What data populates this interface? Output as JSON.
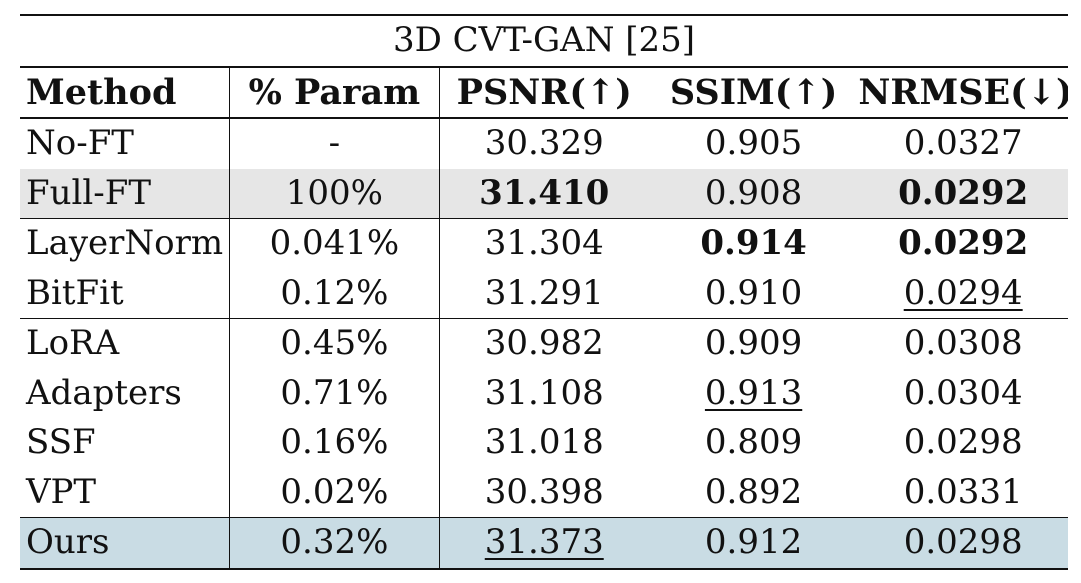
{
  "table": {
    "title": "3D CVT-GAN [25]",
    "headers": [
      "Method",
      "% Param",
      "PSNR(↑)",
      "SSIM(↑)",
      "NRMSE(↓)"
    ],
    "rows": [
      {
        "method": "No-FT",
        "param": "-",
        "psnr": "30.329",
        "ssim": "0.905",
        "nrmse": "0.0327"
      },
      {
        "method": "Full-FT",
        "param": "100%",
        "psnr": "31.410",
        "ssim": "0.908",
        "nrmse": "0.0292"
      },
      {
        "method": "LayerNorm",
        "param": "0.041%",
        "psnr": "31.304",
        "ssim": "0.914",
        "nrmse": "0.0292"
      },
      {
        "method": "BitFit",
        "param": "0.12%",
        "psnr": "31.291",
        "ssim": "0.910",
        "nrmse": "0.0294"
      },
      {
        "method": "LoRA",
        "param": "0.45%",
        "psnr": "30.982",
        "ssim": "0.909",
        "nrmse": "0.0308"
      },
      {
        "method": "Adapters",
        "param": "0.71%",
        "psnr": "31.108",
        "ssim": "0.913",
        "nrmse": "0.0304"
      },
      {
        "method": "SSF",
        "param": "0.16%",
        "psnr": "31.018",
        "ssim": "0.809",
        "nrmse": "0.0298"
      },
      {
        "method": "VPT",
        "param": "0.02%",
        "psnr": "30.398",
        "ssim": "0.892",
        "nrmse": "0.0331"
      },
      {
        "method": "Ours",
        "param": "0.32%",
        "psnr": "31.373",
        "ssim": "0.912",
        "nrmse": "0.0298"
      }
    ]
  },
  "colors": {
    "highlight_gray": "#e6e6e6",
    "highlight_blue": "#c9dce4",
    "rule": "#111111"
  }
}
